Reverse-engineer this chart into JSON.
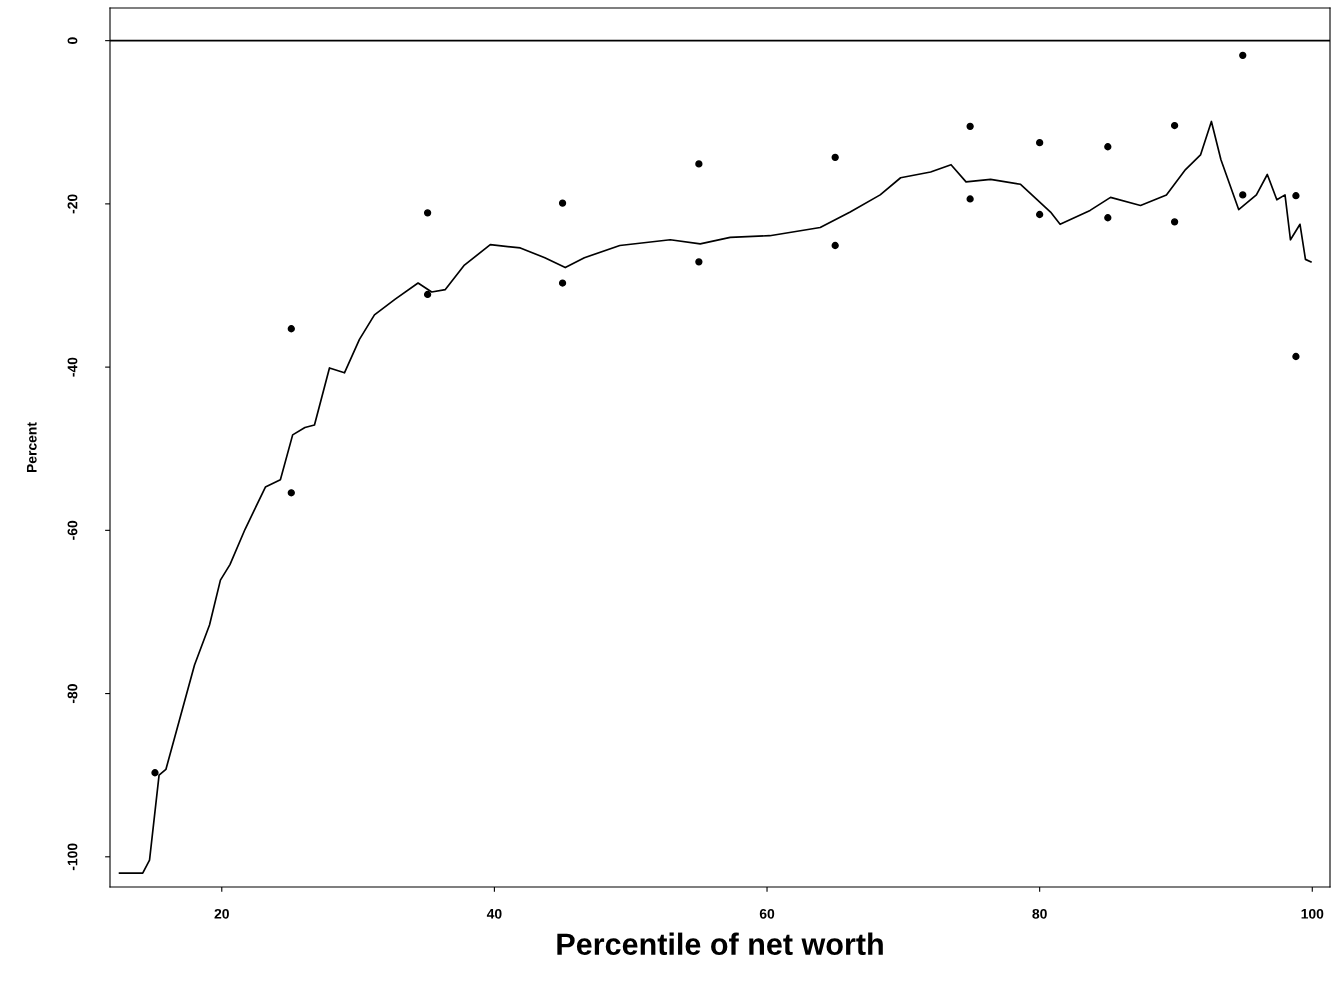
{
  "chart_data": {
    "type": "line",
    "xlabel": "Percentile of net worth",
    "ylabel": "Percent",
    "xlim": [
      11.8,
      101.3
    ],
    "ylim": [
      -103.7,
      4
    ],
    "xticks": [
      20,
      40,
      60,
      80,
      100
    ],
    "yticks": [
      {
        "value": 0,
        "label": "0"
      },
      {
        "value": -20,
        "label": "-20"
      },
      {
        "value": -40,
        "label": "-40"
      },
      {
        "value": -60,
        "label": "-60"
      },
      {
        "value": -80,
        "label": "-80"
      },
      {
        "value": -100,
        "label": "-100"
      }
    ],
    "grid": false,
    "legend": false,
    "ref_lines": [
      {
        "axis": "y",
        "value": 0,
        "color": "#000000"
      }
    ],
    "series": [
      {
        "type": "line",
        "color": "#000000",
        "marker": "none",
        "line_style": "solid",
        "x": [
          12.5,
          14.2,
          14.7,
          15.4,
          15.9,
          16.9,
          18.0,
          19.1,
          19.9,
          20.6,
          21.7,
          23.2,
          24.3,
          25.2,
          26.1,
          26.8,
          27.9,
          29.0,
          30.1,
          31.2,
          32.7,
          34.4,
          35.4,
          36.4,
          37.8,
          39.7,
          41.9,
          43.7,
          45.2,
          46.6,
          49.2,
          52.9,
          55.1,
          57.3,
          60.2,
          63.9,
          66.1,
          68.3,
          69.8,
          72.0,
          73.5,
          74.6,
          76.4,
          78.6,
          80.8,
          81.5,
          83.7,
          85.2,
          87.4,
          89.3,
          90.7,
          91.8,
          92.6,
          93.3,
          94.6,
          95.9,
          96.7,
          97.4,
          98.0,
          98.4,
          99.1,
          99.5,
          99.9
        ],
        "values": [
          -102,
          -102,
          -100.4,
          -90,
          -89.3,
          -83.2,
          -76.5,
          -71.6,
          -66.1,
          -64.2,
          -59.9,
          -54.7,
          -53.8,
          -48.3,
          -47.4,
          -47.1,
          -40.1,
          -40.7,
          -36.6,
          -33.6,
          -31.7,
          -29.7,
          -30.8,
          -30.5,
          -27.5,
          -25.0,
          -25.4,
          -26.6,
          -27.8,
          -26.6,
          -25.1,
          -24.4,
          -24.9,
          -24.1,
          -23.9,
          -22.9,
          -21.0,
          -18.9,
          -16.8,
          -16.1,
          -15.2,
          -17.3,
          -17.0,
          -17.6,
          -21.0,
          -22.5,
          -20.8,
          -19.2,
          -20.2,
          -18.9,
          -15.8,
          -14.0,
          -9.9,
          -14.6,
          -20.7,
          -18.9,
          -16.4,
          -19.5,
          -18.9,
          -24.4,
          -22.5,
          -26.8,
          -27.1
        ]
      },
      {
        "type": "scatter",
        "color": "#000000",
        "marker": "circle",
        "x": [
          15.1,
          25.1,
          25.1,
          35.1,
          35.1,
          45.0,
          45.0,
          55.0,
          55.0,
          65.0,
          65.0,
          74.9,
          74.9,
          80.0,
          80.0,
          85.0,
          85.0,
          89.9,
          89.9,
          94.9,
          94.9,
          98.8,
          98.8
        ],
        "values": [
          -89.7,
          -35.3,
          -55.4,
          -21.1,
          -31.1,
          -19.9,
          -29.7,
          -15.1,
          -27.1,
          -14.3,
          -25.1,
          -10.5,
          -19.4,
          -12.5,
          -21.3,
          -13.0,
          -21.7,
          -10.4,
          -22.2,
          -1.8,
          -18.9,
          -19.0,
          -38.7
        ]
      }
    ]
  }
}
